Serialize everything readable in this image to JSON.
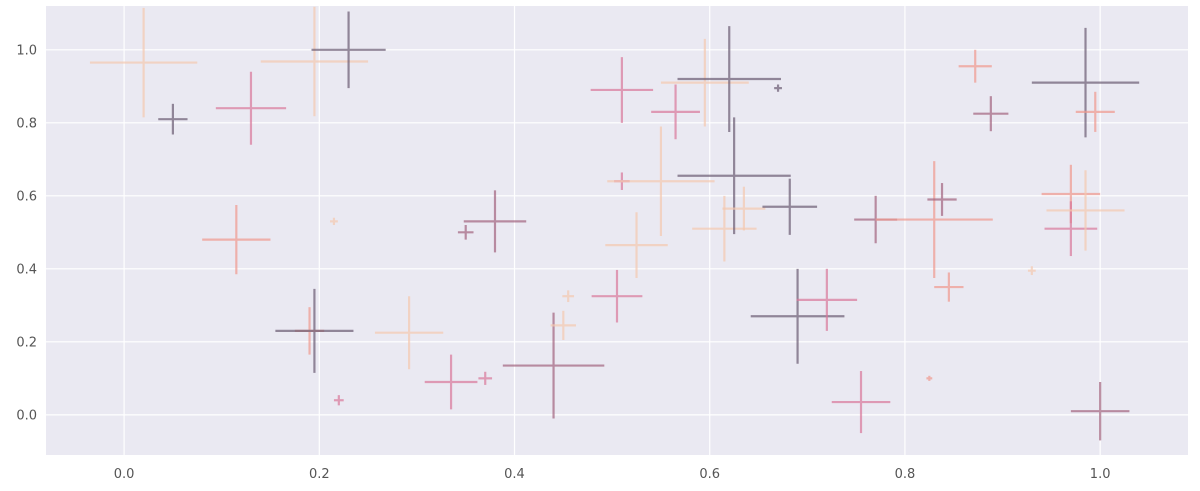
{
  "chart_data": {
    "type": "scatter",
    "title": "",
    "xlabel": "",
    "ylabel": "",
    "xlim": [
      -0.08,
      1.09
    ],
    "ylim": [
      -0.11,
      1.12
    ],
    "grid": true,
    "background_color": "#eae9f2",
    "grid_color": "#ffffff",
    "x_ticks": [
      {
        "value": 0.0,
        "label": "0.0"
      },
      {
        "value": 0.2,
        "label": "0.2"
      },
      {
        "value": 0.4,
        "label": "0.4"
      },
      {
        "value": 0.6,
        "label": "0.6"
      },
      {
        "value": 0.8,
        "label": "0.8"
      },
      {
        "value": 1.0,
        "label": "1.0"
      }
    ],
    "y_ticks": [
      {
        "value": 0.0,
        "label": "0.0"
      },
      {
        "value": 0.2,
        "label": "0.2"
      },
      {
        "value": 0.4,
        "label": "0.4"
      },
      {
        "value": 0.6,
        "label": "0.6"
      },
      {
        "value": 0.8,
        "label": "0.8"
      },
      {
        "value": 1.0,
        "label": "1.0"
      }
    ],
    "palette": [
      "#f5c9b0",
      "#f0998e",
      "#d9789a",
      "#a2637e",
      "#6b5b73"
    ],
    "series": [
      {
        "values": [
          {
            "x": 0.02,
            "y": 0.965,
            "ex": 0.055,
            "ey": 0.15,
            "c": 0
          },
          {
            "x": 0.05,
            "y": 0.81,
            "ex": 0.015,
            "ey": 0.042,
            "c": 4
          },
          {
            "x": 0.13,
            "y": 0.84,
            "ex": 0.036,
            "ey": 0.1,
            "c": 2
          },
          {
            "x": 0.115,
            "y": 0.48,
            "ex": 0.035,
            "ey": 0.095,
            "c": 1
          },
          {
            "x": 0.195,
            "y": 0.968,
            "ex": 0.055,
            "ey": 0.15,
            "c": 0
          },
          {
            "x": 0.23,
            "y": 1.0,
            "ex": 0.038,
            "ey": 0.105,
            "c": 4
          },
          {
            "x": 0.215,
            "y": 0.53,
            "ex": 0.004,
            "ey": 0.01,
            "c": 0
          },
          {
            "x": 0.19,
            "y": 0.23,
            "ex": 0.015,
            "ey": 0.065,
            "c": 1
          },
          {
            "x": 0.195,
            "y": 0.23,
            "ex": 0.04,
            "ey": 0.115,
            "c": 4
          },
          {
            "x": 0.22,
            "y": 0.04,
            "ex": 0.005,
            "ey": 0.014,
            "c": 2
          },
          {
            "x": 0.292,
            "y": 0.225,
            "ex": 0.035,
            "ey": 0.1,
            "c": 0
          },
          {
            "x": 0.335,
            "y": 0.09,
            "ex": 0.027,
            "ey": 0.075,
            "c": 2
          },
          {
            "x": 0.35,
            "y": 0.5,
            "ex": 0.008,
            "ey": 0.02,
            "c": 3
          },
          {
            "x": 0.37,
            "y": 0.1,
            "ex": 0.007,
            "ey": 0.018,
            "c": 2
          },
          {
            "x": 0.38,
            "y": 0.53,
            "ex": 0.032,
            "ey": 0.085,
            "c": 3
          },
          {
            "x": 0.44,
            "y": 0.135,
            "ex": 0.052,
            "ey": 0.145,
            "c": 3
          },
          {
            "x": 0.45,
            "y": 0.245,
            "ex": 0.013,
            "ey": 0.04,
            "c": 0
          },
          {
            "x": 0.455,
            "y": 0.325,
            "ex": 0.006,
            "ey": 0.016,
            "c": 0
          },
          {
            "x": 0.51,
            "y": 0.89,
            "ex": 0.032,
            "ey": 0.09,
            "c": 2
          },
          {
            "x": 0.51,
            "y": 0.64,
            "ex": 0.008,
            "ey": 0.024,
            "c": 2
          },
          {
            "x": 0.55,
            "y": 0.64,
            "ex": 0.055,
            "ey": 0.15,
            "c": 0
          },
          {
            "x": 0.505,
            "y": 0.325,
            "ex": 0.026,
            "ey": 0.072,
            "c": 2
          },
          {
            "x": 0.525,
            "y": 0.465,
            "ex": 0.032,
            "ey": 0.09,
            "c": 0
          },
          {
            "x": 0.565,
            "y": 0.83,
            "ex": 0.025,
            "ey": 0.075,
            "c": 2
          },
          {
            "x": 0.595,
            "y": 0.91,
            "ex": 0.045,
            "ey": 0.12,
            "c": 0
          },
          {
            "x": 0.615,
            "y": 0.51,
            "ex": 0.033,
            "ey": 0.09,
            "c": 0
          },
          {
            "x": 0.62,
            "y": 0.92,
            "ex": 0.053,
            "ey": 0.145,
            "c": 4
          },
          {
            "x": 0.625,
            "y": 0.655,
            "ex": 0.058,
            "ey": 0.16,
            "c": 4
          },
          {
            "x": 0.635,
            "y": 0.565,
            "ex": 0.022,
            "ey": 0.06,
            "c": 0
          },
          {
            "x": 0.67,
            "y": 0.895,
            "ex": 0.004,
            "ey": 0.01,
            "c": 4
          },
          {
            "x": 0.682,
            "y": 0.57,
            "ex": 0.028,
            "ey": 0.077,
            "c": 4
          },
          {
            "x": 0.69,
            "y": 0.27,
            "ex": 0.048,
            "ey": 0.13,
            "c": 4
          },
          {
            "x": 0.72,
            "y": 0.315,
            "ex": 0.031,
            "ey": 0.085,
            "c": 2
          },
          {
            "x": 0.755,
            "y": 0.035,
            "ex": 0.03,
            "ey": 0.085,
            "c": 2
          },
          {
            "x": 0.77,
            "y": 0.535,
            "ex": 0.022,
            "ey": 0.065,
            "c": 3
          },
          {
            "x": 0.83,
            "y": 0.535,
            "ex": 0.06,
            "ey": 0.16,
            "c": 1
          },
          {
            "x": 0.838,
            "y": 0.59,
            "ex": 0.015,
            "ey": 0.045,
            "c": 3
          },
          {
            "x": 0.845,
            "y": 0.35,
            "ex": 0.015,
            "ey": 0.04,
            "c": 1
          },
          {
            "x": 0.825,
            "y": 0.1,
            "ex": 0.003,
            "ey": 0.007,
            "c": 1
          },
          {
            "x": 0.872,
            "y": 0.955,
            "ex": 0.017,
            "ey": 0.045,
            "c": 1
          },
          {
            "x": 0.888,
            "y": 0.825,
            "ex": 0.018,
            "ey": 0.048,
            "c": 3
          },
          {
            "x": 0.93,
            "y": 0.395,
            "ex": 0.004,
            "ey": 0.012,
            "c": 0
          },
          {
            "x": 0.985,
            "y": 0.91,
            "ex": 0.055,
            "ey": 0.15,
            "c": 4
          },
          {
            "x": 0.995,
            "y": 0.83,
            "ex": 0.02,
            "ey": 0.055,
            "c": 1
          },
          {
            "x": 0.97,
            "y": 0.605,
            "ex": 0.03,
            "ey": 0.08,
            "c": 1
          },
          {
            "x": 0.97,
            "y": 0.51,
            "ex": 0.027,
            "ey": 0.075,
            "c": 2
          },
          {
            "x": 0.985,
            "y": 0.56,
            "ex": 0.04,
            "ey": 0.11,
            "c": 0
          },
          {
            "x": 1.0,
            "y": 0.01,
            "ex": 0.03,
            "ey": 0.08,
            "c": 3
          }
        ]
      }
    ]
  }
}
